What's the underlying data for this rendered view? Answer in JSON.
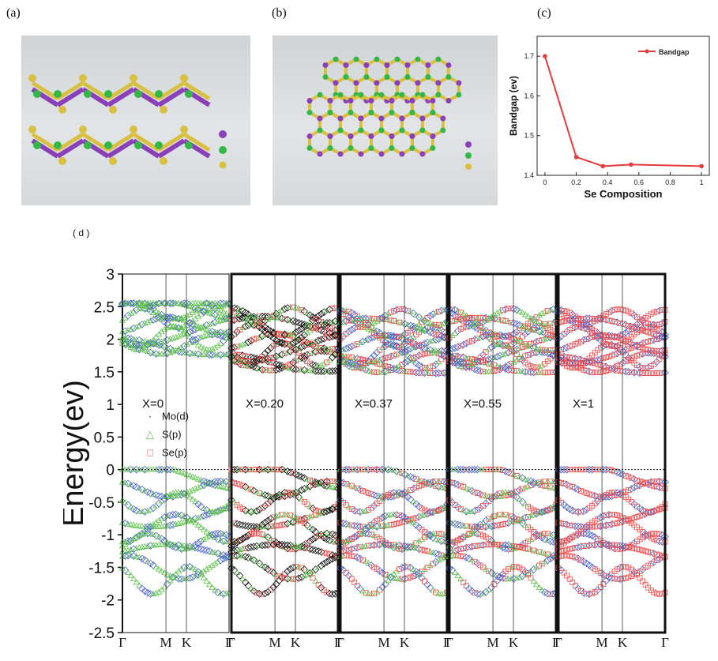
{
  "labels": {
    "a": "(a)",
    "b": "(b)",
    "c": "(c)",
    "d": "( d )"
  },
  "colors": {
    "mo": "#8b3fb8",
    "s": "#33b848",
    "se": "#d9c040",
    "bandgap": "#e53b3b",
    "blue": "#4a63c8",
    "green": "#5cc24a",
    "red": "#ef4a4a",
    "black": "#111111"
  },
  "chart_data": [
    {
      "type": "line",
      "x": [
        0,
        0.2,
        0.37,
        0.55,
        1
      ],
      "series": [
        {
          "name": "Bandgap",
          "values": [
            1.7,
            1.446,
            1.423,
            1.427,
            1.423
          ]
        }
      ],
      "xlabel": "Se Composition",
      "ylabel": "Bandgap (ev)",
      "xlim": [
        -0.05,
        1.05
      ],
      "ylim": [
        1.4,
        1.75
      ],
      "xticks": [
        "0",
        "0.2",
        "0.4",
        "0.6",
        "0.8",
        "1"
      ],
      "yticks": [
        "1.4",
        "1.5",
        "1.6",
        "1.7"
      ],
      "legend": "top-right"
    },
    {
      "type": "scatter",
      "ylabel": "Energy(ev)",
      "ylim": [
        -2.5,
        3
      ],
      "yticks": [
        "3",
        "2.5",
        "2",
        "1.5",
        "1",
        "0.5",
        "0",
        "-0.5",
        "-1",
        "-1.5",
        "-2",
        "-2.5"
      ],
      "kpath": [
        "Γ",
        "M",
        "K",
        "Γ"
      ],
      "panels": [
        {
          "label": "X=0",
          "vb_top": 0,
          "cb_min": 1.7,
          "mix": {
            "mo": 0.3,
            "s": 0.7,
            "se": 0
          }
        },
        {
          "label": "X=0.20",
          "vb_top": 0,
          "cb_min": 1.45,
          "mix": {
            "mo": 0.45,
            "s": 0.25,
            "se": 0.3
          }
        },
        {
          "label": "X=0.37",
          "vb_top": 0,
          "cb_min": 1.42,
          "mix": {
            "mo": 0.35,
            "s": 0.3,
            "se": 0.35
          }
        },
        {
          "label": "X=0.55",
          "vb_top": 0,
          "cb_min": 1.43,
          "mix": {
            "mo": 0.3,
            "s": 0.3,
            "se": 0.4
          }
        },
        {
          "label": "X=1",
          "vb_top": 0,
          "cb_min": 1.42,
          "mix": {
            "mo": 0.3,
            "s": 0,
            "se": 0.7
          }
        }
      ],
      "legend_items": [
        {
          "marker": "·",
          "label": "Mo(d)"
        },
        {
          "marker": "△",
          "label": "S(p)"
        },
        {
          "marker": "□",
          "label": "Se(p)"
        }
      ]
    }
  ]
}
